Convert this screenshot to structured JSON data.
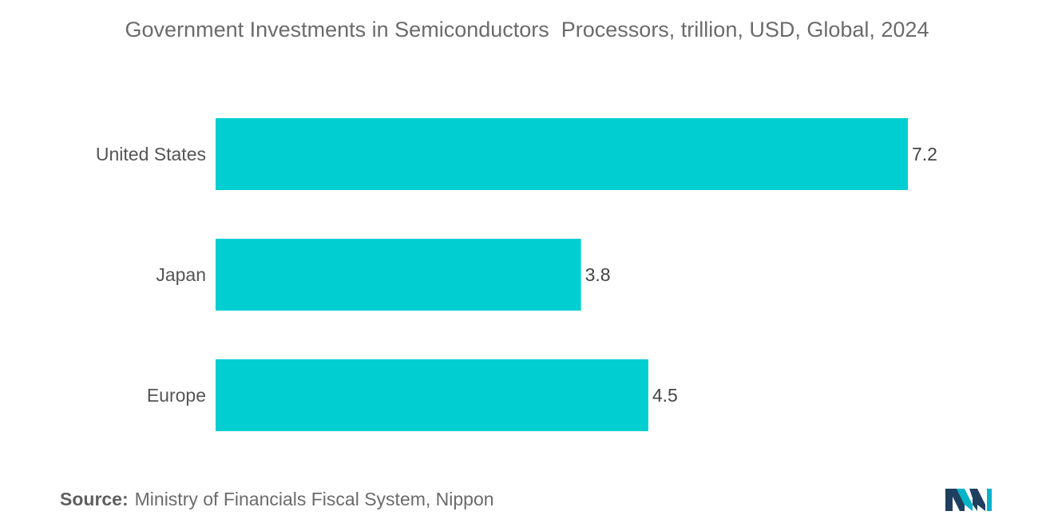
{
  "chart_data": {
    "type": "bar",
    "orientation": "horizontal",
    "title": "Government Investments in Semiconductors  Processors, trillion, USD, Global, 2024",
    "categories": [
      "United States",
      "Japan",
      "Europe"
    ],
    "values": [
      7.2,
      3.8,
      4.5
    ],
    "value_labels": [
      "7.2",
      "3.8",
      "4.5"
    ],
    "xlabel": "",
    "ylabel": "",
    "xlim": [
      0,
      7.2
    ],
    "grid": false,
    "legend": "none",
    "colors": {
      "bar": "#00ced1",
      "text": "#555555"
    }
  },
  "source": {
    "label": "Source:",
    "text": "Ministry of Financials Fiscal System, Nippon"
  },
  "logo": {
    "icon": "mordor-intelligence-logo-icon",
    "colors": [
      "#1f3f60",
      "#00b4c8"
    ]
  }
}
